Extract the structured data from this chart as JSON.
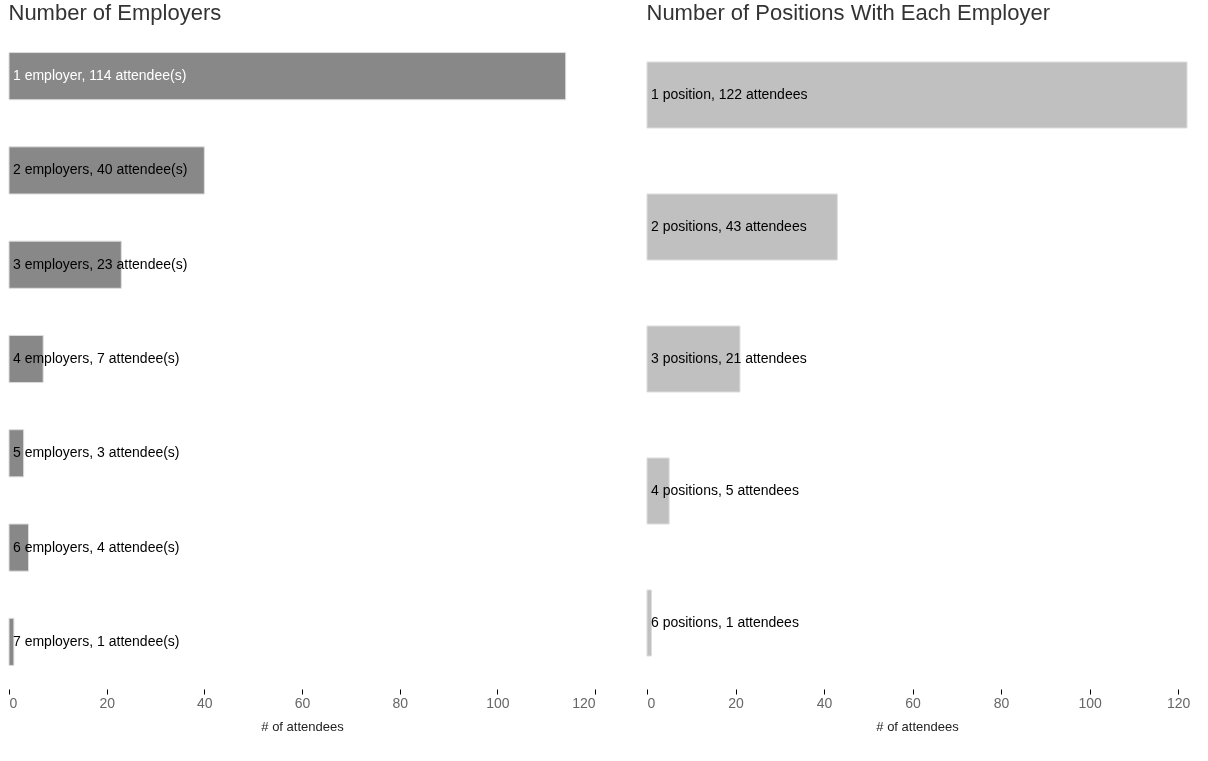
{
  "chart_data": [
    {
      "type": "bar",
      "orientation": "horizontal",
      "title": "Number of Employers",
      "xlabel": "# of attendees",
      "categories": [
        null,
        null,
        null,
        null,
        null,
        null,
        null
      ],
      "values": [
        114,
        40,
        23,
        7,
        3,
        4,
        1
      ],
      "color": "#888888",
      "value_labels": [
        "1 employer, 114 attendee(s)",
        "2 employers, 40 attendee(s)",
        "3 employers, 23 attendee(s)",
        "4 employers, 7 attendee(s)",
        "5 employers, 3 attendee(s)",
        "6 employers, 4 attendee(s)",
        "7 employers, 1 attendee(s)"
      ],
      "xlim": [
        0,
        120
      ],
      "xticks": [
        0,
        20,
        40,
        60,
        80,
        100,
        120
      ],
      "grid": false
    },
    {
      "type": "bar",
      "orientation": "horizontal",
      "title": "Number of Positions With Each Employer",
      "xlabel": "# of attendees",
      "categories": [
        null,
        null,
        null,
        null,
        null
      ],
      "values": [
        122,
        43,
        21,
        5,
        1
      ],
      "color": "#c0c0c0",
      "value_labels": [
        "1 position, 122 attendees",
        "2 positions, 43 attendees",
        "3 positions, 21 attendees",
        "4 positions, 5 attendees",
        "6 positions, 1 attendees"
      ],
      "xlim": [
        0,
        122
      ],
      "xticks": [
        0,
        20,
        40,
        60,
        80,
        100,
        120
      ],
      "grid": false
    }
  ]
}
